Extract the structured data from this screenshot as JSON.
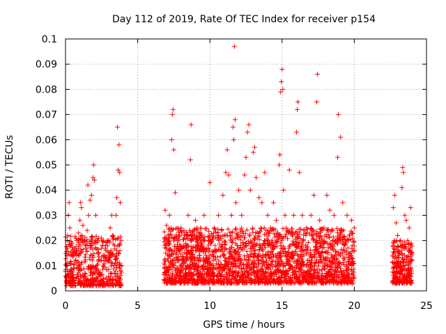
{
  "chart_data": {
    "type": "scatter",
    "title": "Day 112 of 2019, Rate Of TEC Index for receiver p154",
    "xlabel": "GPS time / hours",
    "ylabel": "ROTI / TECUs",
    "xlim": [
      0,
      25
    ],
    "ylim": [
      0,
      0.1
    ],
    "x_ticks": [
      0,
      5,
      10,
      15,
      20,
      25
    ],
    "x_tick_labels": [
      "0",
      "5",
      "10",
      "15",
      "20",
      "25"
    ],
    "y_ticks": [
      0,
      0.01,
      0.02,
      0.03,
      0.04,
      0.05,
      0.06,
      0.07,
      0.08,
      0.09,
      0.1
    ],
    "y_tick_labels": [
      "0",
      "0.01",
      "0.02",
      "0.03",
      "0.04",
      "0.05",
      "0.06",
      "0.07",
      "0.08",
      "0.09",
      "0.1"
    ],
    "grid": true,
    "marker": "+",
    "color": "#ff0000",
    "series": [
      {
        "points": [
          [
            0.05,
            0.01
          ],
          [
            0.1,
            0.014
          ],
          [
            0.15,
            0.022
          ],
          [
            0.2,
            0.03
          ],
          [
            0.25,
            0.035
          ],
          [
            0.3,
            0.025
          ],
          [
            0.35,
            0.018
          ],
          [
            0.4,
            0.008
          ],
          [
            0.5,
            0.005
          ],
          [
            0.6,
            0.004
          ],
          [
            0.7,
            0.012
          ],
          [
            0.8,
            0.016
          ],
          [
            0.9,
            0.023
          ],
          [
            1.0,
            0.028
          ],
          [
            1.05,
            0.035
          ],
          [
            1.1,
            0.033
          ],
          [
            1.2,
            0.026
          ],
          [
            1.3,
            0.02
          ],
          [
            1.4,
            0.018
          ],
          [
            1.5,
            0.024
          ],
          [
            1.55,
            0.042
          ],
          [
            1.6,
            0.03
          ],
          [
            1.7,
            0.036
          ],
          [
            1.8,
            0.038
          ],
          [
            1.9,
            0.045
          ],
          [
            1.95,
            0.05
          ],
          [
            2.0,
            0.044
          ],
          [
            2.1,
            0.03
          ],
          [
            2.2,
            0.02
          ],
          [
            2.4,
            0.012
          ],
          [
            2.6,
            0.01
          ],
          [
            2.8,
            0.016
          ],
          [
            3.0,
            0.02
          ],
          [
            3.1,
            0.025
          ],
          [
            3.2,
            0.03
          ],
          [
            3.3,
            0.022
          ],
          [
            3.4,
            0.018
          ],
          [
            3.5,
            0.03
          ],
          [
            3.55,
            0.037
          ],
          [
            3.6,
            0.065
          ],
          [
            3.65,
            0.048
          ],
          [
            3.7,
            0.058
          ],
          [
            3.75,
            0.047
          ],
          [
            3.8,
            0.035
          ],
          [
            3.85,
            0.02
          ],
          [
            3.9,
            0.01
          ],
          [
            6.9,
            0.032
          ],
          [
            7.0,
            0.026
          ],
          [
            7.1,
            0.02
          ],
          [
            7.2,
            0.03
          ],
          [
            7.3,
            0.025
          ],
          [
            7.35,
            0.06
          ],
          [
            7.4,
            0.07
          ],
          [
            7.45,
            0.072
          ],
          [
            7.5,
            0.056
          ],
          [
            7.6,
            0.039
          ],
          [
            7.8,
            0.02
          ],
          [
            8.0,
            0.025
          ],
          [
            8.2,
            0.018
          ],
          [
            8.5,
            0.03
          ],
          [
            8.65,
            0.052
          ],
          [
            8.7,
            0.066
          ],
          [
            9.0,
            0.028
          ],
          [
            9.3,
            0.022
          ],
          [
            9.6,
            0.03
          ],
          [
            9.9,
            0.02
          ],
          [
            10.0,
            0.043
          ],
          [
            10.3,
            0.025
          ],
          [
            10.6,
            0.03
          ],
          [
            10.9,
            0.038
          ],
          [
            11.1,
            0.047
          ],
          [
            11.2,
            0.056
          ],
          [
            11.3,
            0.046
          ],
          [
            11.5,
            0.03
          ],
          [
            11.6,
            0.065
          ],
          [
            11.65,
            0.06
          ],
          [
            11.7,
            0.097
          ],
          [
            11.75,
            0.068
          ],
          [
            11.8,
            0.035
          ],
          [
            12.0,
            0.04
          ],
          [
            12.2,
            0.03
          ],
          [
            12.4,
            0.046
          ],
          [
            12.5,
            0.053
          ],
          [
            12.6,
            0.063
          ],
          [
            12.7,
            0.066
          ],
          [
            12.8,
            0.04
          ],
          [
            13.0,
            0.055
          ],
          [
            13.1,
            0.057
          ],
          [
            13.2,
            0.045
          ],
          [
            13.4,
            0.037
          ],
          [
            13.6,
            0.035
          ],
          [
            13.8,
            0.047
          ],
          [
            14.0,
            0.03
          ],
          [
            14.2,
            0.025
          ],
          [
            14.4,
            0.035
          ],
          [
            14.6,
            0.028
          ],
          [
            14.8,
            0.05
          ],
          [
            14.85,
            0.054
          ],
          [
            14.9,
            0.079
          ],
          [
            14.95,
            0.083
          ],
          [
            15.0,
            0.088
          ],
          [
            15.05,
            0.08
          ],
          [
            15.1,
            0.04
          ],
          [
            15.2,
            0.03
          ],
          [
            15.5,
            0.048
          ],
          [
            15.8,
            0.03
          ],
          [
            16.0,
            0.063
          ],
          [
            16.05,
            0.072
          ],
          [
            16.1,
            0.075
          ],
          [
            16.2,
            0.047
          ],
          [
            16.4,
            0.03
          ],
          [
            16.7,
            0.025
          ],
          [
            17.0,
            0.03
          ],
          [
            17.2,
            0.038
          ],
          [
            17.4,
            0.075
          ],
          [
            17.45,
            0.086
          ],
          [
            17.6,
            0.028
          ],
          [
            17.9,
            0.025
          ],
          [
            18.1,
            0.038
          ],
          [
            18.3,
            0.032
          ],
          [
            18.6,
            0.03
          ],
          [
            18.85,
            0.053
          ],
          [
            18.9,
            0.07
          ],
          [
            19.05,
            0.061
          ],
          [
            19.2,
            0.035
          ],
          [
            19.5,
            0.03
          ],
          [
            19.8,
            0.028
          ],
          [
            20.0,
            0.025
          ],
          [
            22.7,
            0.033
          ],
          [
            22.8,
            0.038
          ],
          [
            22.9,
            0.027
          ],
          [
            23.0,
            0.022
          ],
          [
            23.1,
            0.015
          ],
          [
            23.2,
            0.02
          ],
          [
            23.3,
            0.041
          ],
          [
            23.35,
            0.049
          ],
          [
            23.4,
            0.047
          ],
          [
            23.5,
            0.03
          ],
          [
            23.6,
            0.028
          ],
          [
            23.7,
            0.02
          ],
          [
            23.8,
            0.025
          ],
          [
            23.9,
            0.033
          ],
          [
            24.0,
            0.015
          ]
        ]
      }
    ],
    "dense_bands": [
      {
        "x_start": 0.0,
        "x_end": 3.9,
        "y_low": 0.002,
        "y_high": 0.022,
        "count": 500
      },
      {
        "x_start": 6.8,
        "x_end": 20.0,
        "y_low": 0.003,
        "y_high": 0.025,
        "count": 2200
      },
      {
        "x_start": 22.6,
        "x_end": 24.0,
        "y_low": 0.003,
        "y_high": 0.02,
        "count": 260
      }
    ]
  }
}
